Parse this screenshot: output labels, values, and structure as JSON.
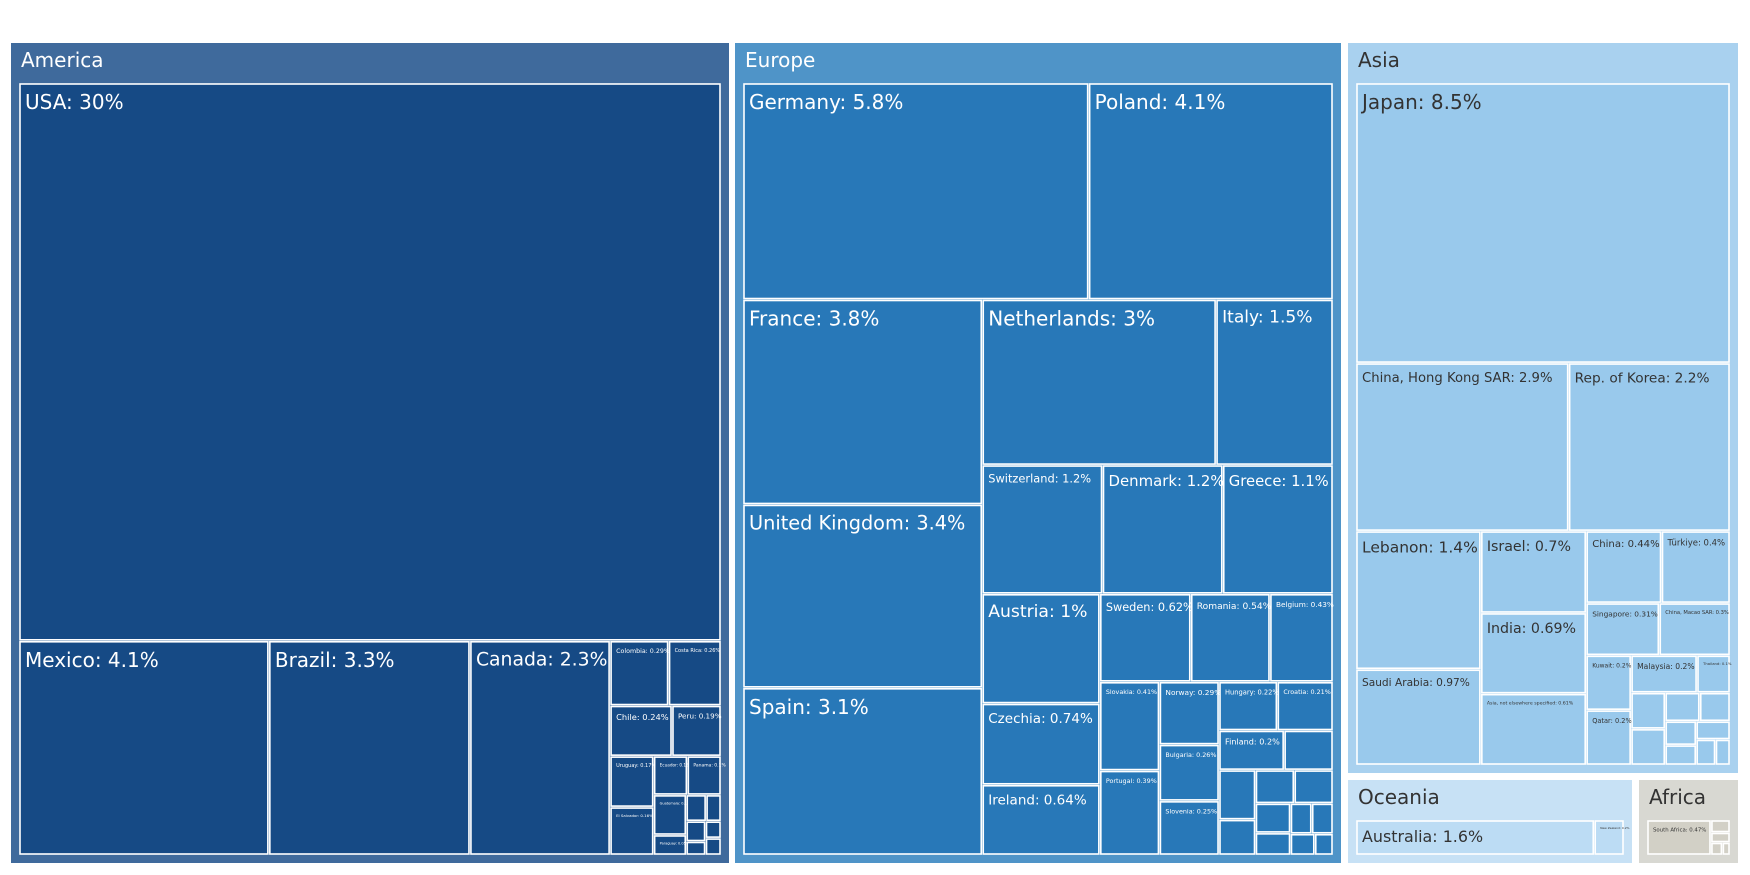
{
  "chart_data": {
    "type": "treemap",
    "title": "",
    "colors": {
      "America": {
        "fill": "#3f6a9c",
        "leaf": "#164a85",
        "text": "#ffffff"
      },
      "Europe": {
        "fill": "#4f94c8",
        "leaf": "#2878b8",
        "text": "#ffffff"
      },
      "Asia": {
        "fill": "#a9d1ef",
        "leaf": "#99c9ec",
        "text": "#333333"
      },
      "Oceania": {
        "fill": "#c7e1f5",
        "leaf": "#bcdcf4",
        "text": "#333333"
      },
      "Africa": {
        "fill": "#d8d8d2",
        "leaf": "#d2d0c6",
        "text": "#333333"
      }
    },
    "regions": [
      {
        "name": "America",
        "items": [
          {
            "label": "USA: 30%",
            "value": 30
          },
          {
            "label": "Mexico: 4.1%",
            "value": 4.1
          },
          {
            "label": "Brazil: 3.3%",
            "value": 3.3
          },
          {
            "label": "Canada: 2.3%",
            "value": 2.3
          },
          {
            "label": "Colombia: 0.29%",
            "value": 0.29
          },
          {
            "label": "Costa Rica: 0.26%",
            "value": 0.26
          },
          {
            "label": "Chile: 0.24%",
            "value": 0.24
          },
          {
            "label": "Peru: 0.19%",
            "value": 0.19
          },
          {
            "label": "El Salvador: 0.16%",
            "value": 0.16
          },
          {
            "label": "Ecuador: 0.1%",
            "value": 0.1
          },
          {
            "label": "Panama: 0.1%",
            "value": 0.1
          },
          {
            "label": "Guatemala: 0.1%",
            "value": 0.1
          },
          {
            "label": "Uruguay: 0.17%",
            "value": 0.17
          },
          {
            "label": "Paraguay: 0.05%",
            "value": 0.05
          },
          {
            "label": "",
            "value": 0.04
          },
          {
            "label": "",
            "value": 0.03
          },
          {
            "label": "",
            "value": 0.03
          },
          {
            "label": "",
            "value": 0.02
          },
          {
            "label": "",
            "value": 0.02
          },
          {
            "label": "",
            "value": 0.02
          }
        ]
      },
      {
        "name": "Europe",
        "items": [
          {
            "label": "Germany: 5.8%",
            "value": 5.8
          },
          {
            "label": "Poland: 4.1%",
            "value": 4.1
          },
          {
            "label": "France: 3.8%",
            "value": 3.8
          },
          {
            "label": "Netherlands: 3%",
            "value": 3
          },
          {
            "label": "Italy: 1.5%",
            "value": 1.5
          },
          {
            "label": "United Kingdom: 3.4%",
            "value": 3.4
          },
          {
            "label": "Spain: 3.1%",
            "value": 3.1
          },
          {
            "label": "Switzerland: 1.2%",
            "value": 1.2
          },
          {
            "label": "Denmark: 1.2%",
            "value": 1.2
          },
          {
            "label": "Greece: 1.1%",
            "value": 1.1
          },
          {
            "label": "Austria: 1%",
            "value": 1
          },
          {
            "label": "Sweden: 0.62%",
            "value": 0.62
          },
          {
            "label": "Romania: 0.54%",
            "value": 0.54
          },
          {
            "label": "Belgium: 0.43%",
            "value": 0.43
          },
          {
            "label": "Czechia: 0.74%",
            "value": 0.74
          },
          {
            "label": "Ireland: 0.64%",
            "value": 0.64
          },
          {
            "label": "Slovakia: 0.41%",
            "value": 0.41
          },
          {
            "label": "Norway: 0.29%",
            "value": 0.29
          },
          {
            "label": "Hungary: 0.22%",
            "value": 0.22
          },
          {
            "label": "Croatia: 0.21%",
            "value": 0.21
          },
          {
            "label": "Bulgaria: 0.26%",
            "value": 0.26
          },
          {
            "label": "Finland: 0.2%",
            "value": 0.2
          },
          {
            "label": "Portugal: 0.39%",
            "value": 0.39
          },
          {
            "label": "Slovenia: 0.25%",
            "value": 0.25
          },
          {
            "label": "",
            "value": 0.15
          },
          {
            "label": "",
            "value": 0.14
          },
          {
            "label": "",
            "value": 0.1
          },
          {
            "label": "",
            "value": 0.1
          },
          {
            "label": "",
            "value": 0.1
          },
          {
            "label": "",
            "value": 0.08
          },
          {
            "label": "",
            "value": 0.06
          },
          {
            "label": "",
            "value": 0.05
          },
          {
            "label": "",
            "value": 0.05
          },
          {
            "label": "",
            "value": 0.04
          },
          {
            "label": "",
            "value": 0.03
          }
        ]
      },
      {
        "name": "Asia",
        "items": [
          {
            "label": "Japan: 8.5%",
            "value": 8.5
          },
          {
            "label": "China, Hong Kong SAR: 2.9%",
            "value": 2.9
          },
          {
            "label": "Rep. of Korea: 2.2%",
            "value": 2.2
          },
          {
            "label": "Lebanon: 1.4%",
            "value": 1.4
          },
          {
            "label": "Saudi Arabia: 0.97%",
            "value": 0.97
          },
          {
            "label": "Israel: 0.7%",
            "value": 0.7
          },
          {
            "label": "India: 0.69%",
            "value": 0.69
          },
          {
            "label": "Asia, not elsewhere specified: 0.61%",
            "value": 0.61
          },
          {
            "label": "China: 0.44%",
            "value": 0.44
          },
          {
            "label": "Türkiye: 0.4%",
            "value": 0.4
          },
          {
            "label": "Singapore: 0.31%",
            "value": 0.31
          },
          {
            "label": "China, Macao SAR: 0.3%",
            "value": 0.3
          },
          {
            "label": "Kuwait: 0.2%",
            "value": 0.2
          },
          {
            "label": "Qatar: 0.2%",
            "value": 0.2
          },
          {
            "label": "Malaysia: 0.2%",
            "value": 0.2
          },
          {
            "label": "Thailand: 0.1%",
            "value": 0.1
          },
          {
            "label": "",
            "value": 0.1
          },
          {
            "label": "",
            "value": 0.1
          },
          {
            "label": "",
            "value": 0.08
          },
          {
            "label": "",
            "value": 0.07
          },
          {
            "label": "",
            "value": 0.06
          },
          {
            "label": "",
            "value": 0.05
          },
          {
            "label": "",
            "value": 0.05
          },
          {
            "label": "",
            "value": 0.04
          },
          {
            "label": "",
            "value": 0.03
          }
        ]
      },
      {
        "name": "Oceania",
        "items": [
          {
            "label": "Australia: 1.6%",
            "value": 1.6
          },
          {
            "label": "New Zealand: 0.2%",
            "value": 0.2
          }
        ]
      },
      {
        "name": "Africa",
        "items": [
          {
            "label": "South Africa: 0.47%",
            "value": 0.47
          },
          {
            "label": "",
            "value": 0.05
          },
          {
            "label": "",
            "value": 0.04
          },
          {
            "label": "",
            "value": 0.03
          },
          {
            "label": "",
            "value": 0.02
          }
        ]
      }
    ]
  }
}
